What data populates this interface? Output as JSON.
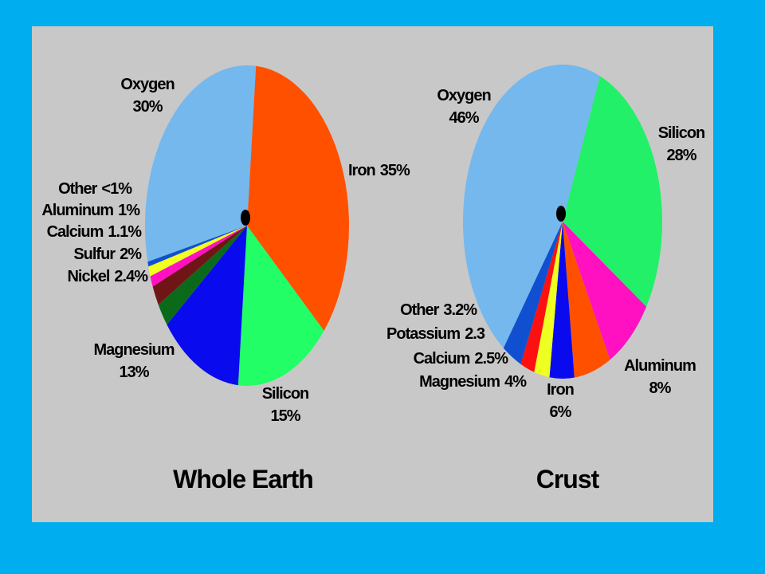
{
  "chart_data": [
    {
      "type": "pie",
      "title": "Whole Earth",
      "categories": [
        "Iron",
        "Silicon",
        "Magnesium",
        "Nickel",
        "Sulfur",
        "Calcium",
        "Aluminum",
        "Other",
        "Oxygen"
      ],
      "values": [
        35,
        15,
        13,
        2.4,
        2,
        1.1,
        1,
        0.5,
        30
      ],
      "value_labels": [
        "35%",
        "15%",
        "13%",
        "2.4%",
        "2%",
        "1.1%",
        "1%",
        "<1%",
        "30%"
      ],
      "colors": [
        "#ff5000",
        "#22ff66",
        "#0a0aee",
        "#0b6a1a",
        "#701515",
        "#ff10c0",
        "#f0ff20",
        "#1050d0",
        "#74b8ee"
      ]
    },
    {
      "type": "pie",
      "title": "Crust",
      "categories": [
        "Silicon",
        "Aluminum",
        "Iron",
        "Magnesium",
        "Calcium",
        "Potassium",
        "Other",
        "Oxygen"
      ],
      "values": [
        28,
        8,
        6,
        4,
        2.5,
        2.3,
        3.2,
        46
      ],
      "value_labels": [
        "28%",
        "8%",
        "6%",
        "4%",
        "2.5%",
        "2.3",
        "3.2%",
        "46%"
      ],
      "colors": [
        "#22f068",
        "#ff10c0",
        "#ff5000",
        "#0a0aee",
        "#eeff22",
        "#ff1010",
        "#1050d0",
        "#74b8ee"
      ]
    }
  ]
}
